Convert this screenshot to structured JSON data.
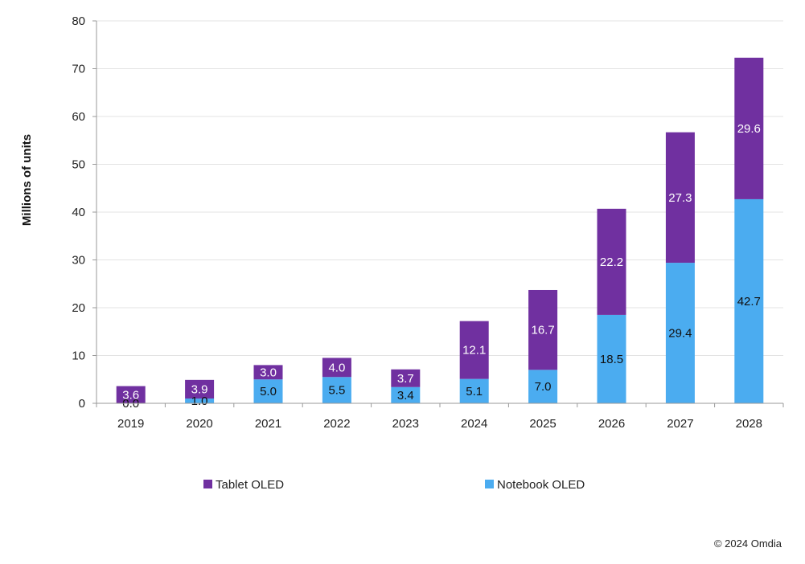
{
  "chart_data": {
    "type": "bar",
    "stacked": true,
    "categories": [
      "2019",
      "2020",
      "2021",
      "2022",
      "2023",
      "2024",
      "2025",
      "2026",
      "2027",
      "2028"
    ],
    "series": [
      {
        "name": "Notebook OLED",
        "color": "#4bacf0",
        "label_color": "#111111",
        "values": [
          0.0,
          1.0,
          5.0,
          5.5,
          3.4,
          5.1,
          7.0,
          18.5,
          29.4,
          42.7
        ]
      },
      {
        "name": "Tablet OLED",
        "color": "#7030a0",
        "label_color": "#ffffff",
        "values": [
          3.6,
          3.9,
          3.0,
          4.0,
          3.7,
          12.1,
          16.7,
          22.2,
          27.3,
          29.6
        ]
      }
    ],
    "ylabel": "Millions of units",
    "xlabel": "",
    "ylim": [
      0,
      80
    ],
    "yticks": [
      0,
      10,
      20,
      30,
      40,
      50,
      60,
      70,
      80
    ],
    "grid": true,
    "legend_position": "bottom",
    "legend_order": [
      "Tablet OLED",
      "Notebook OLED"
    ]
  },
  "source": "© 2024 Omdia"
}
